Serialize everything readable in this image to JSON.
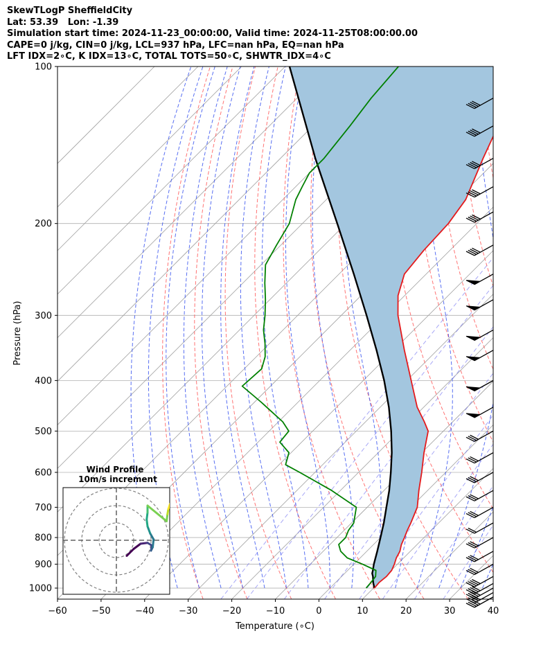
{
  "header": {
    "line1": "SkewTLogP SheffieldCity",
    "line2": "Lat: 53.39   Lon: -1.39",
    "line3": "Simulation start time: 2024-11-23_00:00:00, Valid time: 2024-11-25T08:00:00.00",
    "line4": "CAPE=0 j/kg, CIN=0 j/kg, LCL=937 hPa, LFC=nan hPa, EQ=nan hPa",
    "line5": "LFT IDX=2∘C, K IDX=13∘C, TOTAL TOTS=50∘C, SHWTR_IDX=4∘C"
  },
  "chart_data": {
    "type": "skewt-logp",
    "xlabel": "Temperature (∘C)",
    "ylabel": "Pressure (hPa)",
    "xlim": [
      -60,
      40
    ],
    "ylim": [
      1050,
      100
    ],
    "y_scale": "log",
    "x_ticks": [
      -60,
      -50,
      -40,
      -30,
      -20,
      -10,
      0,
      10,
      20,
      30,
      40
    ],
    "x_tick_labels": [
      "−60",
      "−50",
      "−40",
      "−30",
      "−20",
      "−10",
      "0",
      "10",
      "20",
      "30",
      "40"
    ],
    "y_ticks": [
      1000,
      900,
      800,
      700,
      600,
      500,
      400,
      300,
      200,
      100
    ],
    "y_tick_labels": [
      "1000",
      "900",
      "800",
      "700",
      "600",
      "500",
      "400",
      "300",
      "200",
      "100"
    ],
    "grid": true,
    "colors": {
      "temperature": "#e41a1c",
      "dewpoint": "#008000",
      "parcel": "#000000",
      "cape_fill": "#a3c6df",
      "dry_adiabat": "#ff5a5a",
      "moist_adiabat": "#3a55f0",
      "mixing_ratio": "#6a6af0",
      "isotherm_skew": "#a0a0a0"
    },
    "series": [
      {
        "key": "temperature",
        "pressure": [
          1000,
          975,
          950,
          925,
          900,
          875,
          850,
          825,
          800,
          775,
          750,
          700,
          650,
          600,
          550,
          500,
          480,
          450,
          400,
          350,
          300,
          275,
          250,
          225,
          200,
          180,
          150,
          130,
          115,
          100
        ],
        "values": [
          10.2,
          10.0,
          10.3,
          10.1,
          9.3,
          8.3,
          7.6,
          6.4,
          5.5,
          4.5,
          3.6,
          1.5,
          -2.0,
          -5.5,
          -9.5,
          -13.5,
          -16.5,
          -21.5,
          -29.0,
          -37.5,
          -47.0,
          -51.5,
          -55.0,
          -56.0,
          -56.5,
          -58.0,
          -63.5,
          -67.5,
          -70.5,
          -73.0
        ]
      },
      {
        "key": "dewpoint",
        "pressure": [
          1000,
          975,
          950,
          925,
          900,
          875,
          850,
          825,
          800,
          775,
          750,
          700,
          650,
          600,
          580,
          550,
          525,
          500,
          480,
          440,
          410,
          380,
          360,
          340,
          320,
          300,
          280,
          260,
          240,
          220,
          200,
          180,
          170,
          160,
          150,
          130,
          115,
          100
        ],
        "values": [
          8.3,
          8.1,
          7.8,
          6.5,
          2.0,
          -3.0,
          -6.0,
          -8.0,
          -8.0,
          -9.0,
          -9.5,
          -12.5,
          -22.0,
          -33.5,
          -38.5,
          -40.5,
          -45.0,
          -45.5,
          -49.0,
          -58.5,
          -66.5,
          -66.0,
          -68.0,
          -71.0,
          -74.5,
          -77.5,
          -81.0,
          -85.0,
          -89.0,
          -91.0,
          -93.0,
          -97.0,
          -98.5,
          -100.0,
          -100.0,
          -101.5,
          -103.0,
          -104.0
        ]
      },
      {
        "key": "parcel",
        "pressure": [
          1000,
          975,
          950,
          937,
          925,
          900,
          850,
          800,
          750,
          700,
          650,
          600,
          550,
          500,
          450,
          400,
          350,
          300,
          250,
          200,
          150,
          100
        ],
        "values": [
          10.2,
          8.6,
          7.2,
          6.3,
          5.8,
          4.6,
          2.4,
          0.0,
          -2.6,
          -5.6,
          -8.8,
          -12.6,
          -16.9,
          -22.0,
          -28.0,
          -35.2,
          -43.9,
          -54.2,
          -66.6,
          -82.0,
          -102.0,
          -129.0
        ]
      }
    ],
    "barbs": [
      {
        "p": 1040,
        "barbs": 4
      },
      {
        "p": 1020,
        "barbs": 4
      },
      {
        "p": 1000,
        "barbs": 4
      },
      {
        "p": 980,
        "barbs": 4
      },
      {
        "p": 950,
        "barbs": 4
      },
      {
        "p": 900,
        "barbs": 3
      },
      {
        "p": 850,
        "barbs": 3
      },
      {
        "p": 800,
        "barbs": 3
      },
      {
        "p": 750,
        "barbs": 2
      },
      {
        "p": 700,
        "barbs": 3
      },
      {
        "p": 650,
        "barbs": 3
      },
      {
        "p": 600,
        "barbs": 3
      },
      {
        "p": 550,
        "barbs": 3
      },
      {
        "p": 500,
        "barbs": 3
      },
      {
        "p": 450,
        "pennant": true
      },
      {
        "p": 400,
        "pennant": true
      },
      {
        "p": 350,
        "pennant": true
      },
      {
        "p": 320,
        "pennant": true
      },
      {
        "p": 280,
        "pennant": true
      },
      {
        "p": 250,
        "pennant": true
      },
      {
        "p": 220,
        "barbs": 4
      },
      {
        "p": 190,
        "barbs": 4
      },
      {
        "p": 170,
        "barbs": 4
      },
      {
        "p": 150,
        "barbs": 4
      },
      {
        "p": 130,
        "barbs": 4
      },
      {
        "p": 115,
        "barbs": 4
      }
    ]
  },
  "inset": {
    "title_line1": "Wind Profile",
    "title_line2": "10m/s increment",
    "hodograph": [
      {
        "u": 6.0,
        "v": -9.0
      },
      {
        "u": 10.0,
        "v": -5.0
      },
      {
        "u": 14.0,
        "v": -2.0
      },
      {
        "u": 18.0,
        "v": -1.5
      },
      {
        "u": 20.5,
        "v": -3.0
      },
      {
        "u": 20.0,
        "v": -6.0
      },
      {
        "u": 21.0,
        "v": -4.0
      },
      {
        "u": 21.5,
        "v": 0.5
      },
      {
        "u": 19.5,
        "v": 4.0
      },
      {
        "u": 18.0,
        "v": 8.0
      },
      {
        "u": 17.5,
        "v": 12.0
      },
      {
        "u": 18.0,
        "v": 16.0
      },
      {
        "u": 18.0,
        "v": 20.0
      },
      {
        "u": 29.0,
        "v": 11.0
      },
      {
        "u": 29.5,
        "v": 15.0
      },
      {
        "u": 30.0,
        "v": 18.0
      },
      {
        "u": 31.0,
        "v": 21.0
      }
    ]
  }
}
